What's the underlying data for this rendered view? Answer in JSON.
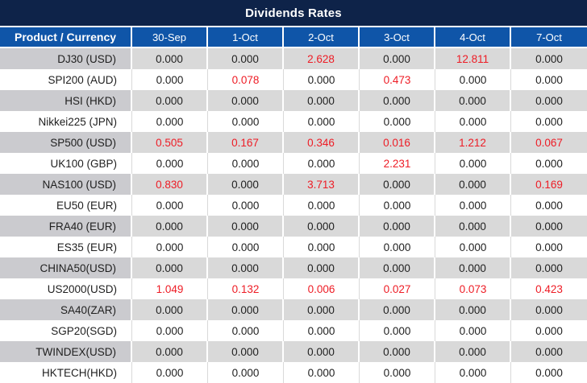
{
  "title": "Dividends Rates",
  "colors": {
    "title_bg": "#0e2349",
    "header_bg": "#0f55a8",
    "header_text": "#ffffff",
    "stripe_row_bg": "#d9d9d9",
    "stripe_product_bg": "#cbcbcf",
    "white_row_bg": "#ffffff",
    "value_text": "#1f1f1f",
    "highlight_red": "#ee1c25"
  },
  "chart_data": {
    "type": "table",
    "title": "Dividends Rates",
    "columns": [
      "Product / Currency",
      "30-Sep",
      "1-Oct",
      "2-Oct",
      "3-Oct",
      "4-Oct",
      "7-Oct"
    ],
    "rows": [
      {
        "product": "DJ30 (USD)",
        "values": [
          "0.000",
          "0.000",
          "2.628",
          "0.000",
          "12.811",
          "0.000"
        ],
        "red": [
          0,
          0,
          1,
          0,
          1,
          0
        ]
      },
      {
        "product": "SPI200 (AUD)",
        "values": [
          "0.000",
          "0.078",
          "0.000",
          "0.473",
          "0.000",
          "0.000"
        ],
        "red": [
          0,
          1,
          0,
          1,
          0,
          0
        ]
      },
      {
        "product": "HSI (HKD)",
        "values": [
          "0.000",
          "0.000",
          "0.000",
          "0.000",
          "0.000",
          "0.000"
        ],
        "red": [
          0,
          0,
          0,
          0,
          0,
          0
        ]
      },
      {
        "product": "Nikkei225 (JPN)",
        "values": [
          "0.000",
          "0.000",
          "0.000",
          "0.000",
          "0.000",
          "0.000"
        ],
        "red": [
          0,
          0,
          0,
          0,
          0,
          0
        ]
      },
      {
        "product": "SP500 (USD)",
        "values": [
          "0.505",
          "0.167",
          "0.346",
          "0.016",
          "1.212",
          "0.067"
        ],
        "red": [
          1,
          1,
          1,
          1,
          1,
          1
        ]
      },
      {
        "product": "UK100 (GBP)",
        "values": [
          "0.000",
          "0.000",
          "0.000",
          "2.231",
          "0.000",
          "0.000"
        ],
        "red": [
          0,
          0,
          0,
          1,
          0,
          0
        ]
      },
      {
        "product": "NAS100 (USD)",
        "values": [
          "0.830",
          "0.000",
          "3.713",
          "0.000",
          "0.000",
          "0.169"
        ],
        "red": [
          1,
          0,
          1,
          0,
          0,
          1
        ]
      },
      {
        "product": "EU50 (EUR)",
        "values": [
          "0.000",
          "0.000",
          "0.000",
          "0.000",
          "0.000",
          "0.000"
        ],
        "red": [
          0,
          0,
          0,
          0,
          0,
          0
        ]
      },
      {
        "product": "FRA40 (EUR)",
        "values": [
          "0.000",
          "0.000",
          "0.000",
          "0.000",
          "0.000",
          "0.000"
        ],
        "red": [
          0,
          0,
          0,
          0,
          0,
          0
        ]
      },
      {
        "product": "ES35 (EUR)",
        "values": [
          "0.000",
          "0.000",
          "0.000",
          "0.000",
          "0.000",
          "0.000"
        ],
        "red": [
          0,
          0,
          0,
          0,
          0,
          0
        ]
      },
      {
        "product": "CHINA50(USD)",
        "values": [
          "0.000",
          "0.000",
          "0.000",
          "0.000",
          "0.000",
          "0.000"
        ],
        "red": [
          0,
          0,
          0,
          0,
          0,
          0
        ]
      },
      {
        "product": "US2000(USD)",
        "values": [
          "1.049",
          "0.132",
          "0.006",
          "0.027",
          "0.073",
          "0.423"
        ],
        "red": [
          1,
          1,
          1,
          1,
          1,
          1
        ]
      },
      {
        "product": "SA40(ZAR)",
        "values": [
          "0.000",
          "0.000",
          "0.000",
          "0.000",
          "0.000",
          "0.000"
        ],
        "red": [
          0,
          0,
          0,
          0,
          0,
          0
        ]
      },
      {
        "product": "SGP20(SGD)",
        "values": [
          "0.000",
          "0.000",
          "0.000",
          "0.000",
          "0.000",
          "0.000"
        ],
        "red": [
          0,
          0,
          0,
          0,
          0,
          0
        ]
      },
      {
        "product": "TWINDEX(USD)",
        "values": [
          "0.000",
          "0.000",
          "0.000",
          "0.000",
          "0.000",
          "0.000"
        ],
        "red": [
          0,
          0,
          0,
          0,
          0,
          0
        ]
      },
      {
        "product": "HKTECH(HKD)",
        "values": [
          "0.000",
          "0.000",
          "0.000",
          "0.000",
          "0.000",
          "0.000"
        ],
        "red": [
          0,
          0,
          0,
          0,
          0,
          0
        ]
      }
    ]
  }
}
